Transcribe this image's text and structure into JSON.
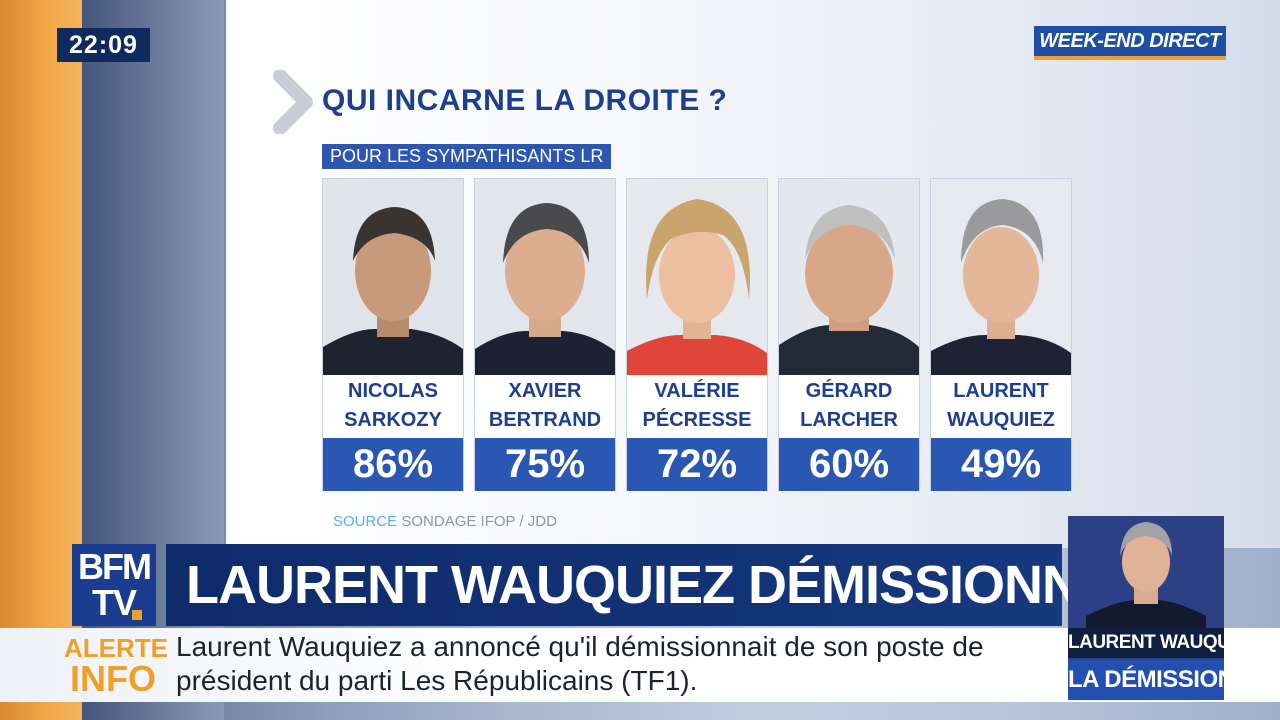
{
  "clock": "22:09",
  "show": "WEEK-END DIRECT",
  "graphic": {
    "title": "QUI INCARNE LA DROITE ?",
    "subtitle": "POUR LES SYMPATHISANTS LR",
    "source_key": "SOURCE",
    "source_value": "SONDAGE IFOP / JDD"
  },
  "candidates": [
    {
      "first": "NICOLAS",
      "last": "SARKOZY",
      "pct": "86%"
    },
    {
      "first": "XAVIER",
      "last": "BERTRAND",
      "pct": "75%"
    },
    {
      "first": "VALÉRIE",
      "last": "PÉCRESSE",
      "pct": "72%"
    },
    {
      "first": "GÉRARD",
      "last": "LARCHER",
      "pct": "60%"
    },
    {
      "first": "LAURENT",
      "last": "WAUQUIEZ",
      "pct": "49%"
    }
  ],
  "logo": {
    "line1": "BFM",
    "line2": "TV"
  },
  "headline": "LAURENT WAUQUIEZ DÉMISSIONNE",
  "alert": {
    "line1": "ALERTE",
    "line2": "INFO"
  },
  "ticker": {
    "line1": "Laurent Wauquiez a annoncé qu'il démissionnait de son poste de",
    "line2": "président du parti Les Républicains (TF1)."
  },
  "pip": {
    "caption_name": "LAURENT WAUQUIEZ",
    "caption_topic": "LA DÉMISSION"
  },
  "colors": {
    "brand_blue": "#2a56b4",
    "navy": "#0e2b6a",
    "accent_orange": "#f0a02a"
  },
  "icons": {
    "chevron": "chevron-right-icon"
  }
}
